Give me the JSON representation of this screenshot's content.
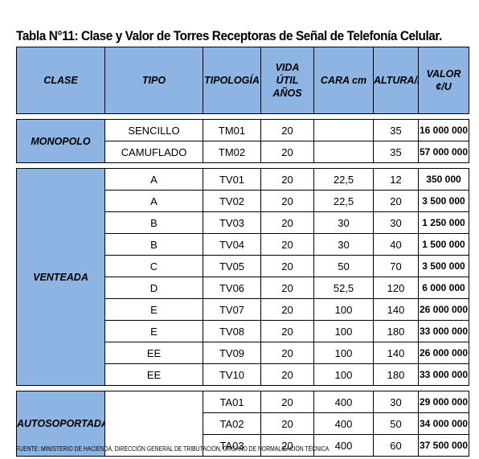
{
  "title": "Tabla N°11: Clase y Valor de Torres Receptoras de Señal de Telefonía Celular.",
  "headers": [
    "CLASE",
    "TIPO",
    "TIPOLOGÍA",
    "VIDA ÚTIL AÑOS",
    "CARA cm",
    "ALTURA/m",
    "VALOR ¢/U"
  ],
  "groups": [
    {
      "clase": "MONOPOLO",
      "rows": [
        {
          "tipo": "SENCILLO",
          "tipologia": "TM01",
          "vida": "20",
          "cara": "",
          "altura": "35",
          "valor": "16 000 000"
        },
        {
          "tipo": "CAMUFLADO",
          "tipologia": "TM02",
          "vida": "20",
          "cara": "",
          "altura": "35",
          "valor": "57 000 000"
        }
      ]
    },
    {
      "clase": "VENTEADA",
      "rows": [
        {
          "tipo": "A",
          "tipologia": "TV01",
          "vida": "20",
          "cara": "22,5",
          "altura": "12",
          "valor": "350 000"
        },
        {
          "tipo": "A",
          "tipologia": "TV02",
          "vida": "20",
          "cara": "22,5",
          "altura": "20",
          "valor": "3 500 000"
        },
        {
          "tipo": "B",
          "tipologia": "TV03",
          "vida": "20",
          "cara": "30",
          "altura": "30",
          "valor": "1 250 000"
        },
        {
          "tipo": "B",
          "tipologia": "TV04",
          "vida": "20",
          "cara": "30",
          "altura": "40",
          "valor": "1 500 000"
        },
        {
          "tipo": "C",
          "tipologia": "TV05",
          "vida": "20",
          "cara": "50",
          "altura": "70",
          "valor": "3 500 000"
        },
        {
          "tipo": "D",
          "tipologia": "TV06",
          "vida": "20",
          "cara": "52,5",
          "altura": "120",
          "valor": "6 000 000"
        },
        {
          "tipo": "E",
          "tipologia": "TV07",
          "vida": "20",
          "cara": "100",
          "altura": "140",
          "valor": "26 000 000"
        },
        {
          "tipo": "E",
          "tipologia": "TV08",
          "vida": "20",
          "cara": "100",
          "altura": "180",
          "valor": "33 000 000"
        },
        {
          "tipo": "EE",
          "tipologia": "TV09",
          "vida": "20",
          "cara": "100",
          "altura": "140",
          "valor": "26 000 000"
        },
        {
          "tipo": "EE",
          "tipologia": "TV10",
          "vida": "20",
          "cara": "100",
          "altura": "180",
          "valor": "33 000 000"
        }
      ]
    },
    {
      "clase": "AUTOSOPORTADA",
      "rows": [
        {
          "tipo": "",
          "tipologia": "TA01",
          "vida": "20",
          "cara": "400",
          "altura": "30",
          "valor": "29 000 000"
        },
        {
          "tipo": "",
          "tipologia": "TA02",
          "vida": "20",
          "cara": "400",
          "altura": "50",
          "valor": "34 000 000"
        },
        {
          "tipo": "",
          "tipologia": "TA03",
          "vida": "20",
          "cara": "400",
          "altura": "60",
          "valor": "37 500 000"
        }
      ]
    }
  ],
  "footer": "FUENTE: MINISTERIO DE HACIENDA, DIRECCIÓN GENERAL DE TRIBUTACIÓN, ÓRGANO DE NORMALIZACIÓN TÉCNICA",
  "colors": {
    "header_bg": "#8db4e2",
    "border": "#000000"
  }
}
